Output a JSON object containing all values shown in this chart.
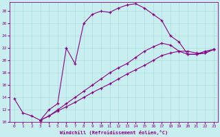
{
  "xlabel": "Windchill (Refroidissement éolien,°C)",
  "background_color": "#c8eef0",
  "line_color": "#880088",
  "grid_color": "#aadddd",
  "ylim": [
    10,
    29.5
  ],
  "xlim": [
    -0.5,
    23.5
  ],
  "yticks": [
    10,
    12,
    14,
    16,
    18,
    20,
    22,
    24,
    26,
    28
  ],
  "xticks": [
    0,
    1,
    2,
    3,
    4,
    5,
    6,
    7,
    8,
    9,
    10,
    11,
    12,
    13,
    14,
    15,
    16,
    17,
    18,
    19,
    20,
    21,
    22,
    23
  ],
  "line_upper_x": [
    0,
    1,
    2,
    3,
    4,
    5,
    6,
    7,
    8,
    9,
    10,
    11,
    12,
    13,
    14,
    15,
    16,
    17,
    18,
    19,
    20,
    21,
    22,
    23
  ],
  "line_upper_y": [
    13.8,
    11.5,
    11.0,
    10.3,
    12.0,
    13.0,
    22.0,
    19.5,
    26.0,
    27.5,
    28.0,
    27.8,
    28.5,
    29.0,
    29.2,
    28.5,
    27.5,
    26.5,
    24.0,
    23.0,
    21.0,
    21.0,
    21.5,
    21.8
  ],
  "line_mid_x": [
    3,
    4,
    5,
    6,
    7,
    8,
    9,
    10,
    11,
    12,
    13,
    14,
    15,
    16,
    17,
    18,
    19,
    20,
    21,
    22,
    23
  ],
  "line_mid_y": [
    10.3,
    11.0,
    12.0,
    13.0,
    14.0,
    15.0,
    16.0,
    17.0,
    18.0,
    18.8,
    19.5,
    20.5,
    21.5,
    22.2,
    22.8,
    22.5,
    21.5,
    21.0,
    21.0,
    21.2,
    21.8
  ],
  "line_low_x": [
    3,
    4,
    5,
    6,
    7,
    8,
    9,
    10,
    11,
    12,
    13,
    14,
    15,
    16,
    17,
    18,
    19,
    20,
    21,
    22,
    23
  ],
  "line_low_y": [
    10.3,
    11.0,
    11.8,
    12.5,
    13.2,
    14.0,
    14.8,
    15.5,
    16.2,
    17.0,
    17.8,
    18.5,
    19.2,
    20.0,
    20.8,
    21.2,
    21.5,
    21.5,
    21.2,
    21.2,
    21.8
  ]
}
